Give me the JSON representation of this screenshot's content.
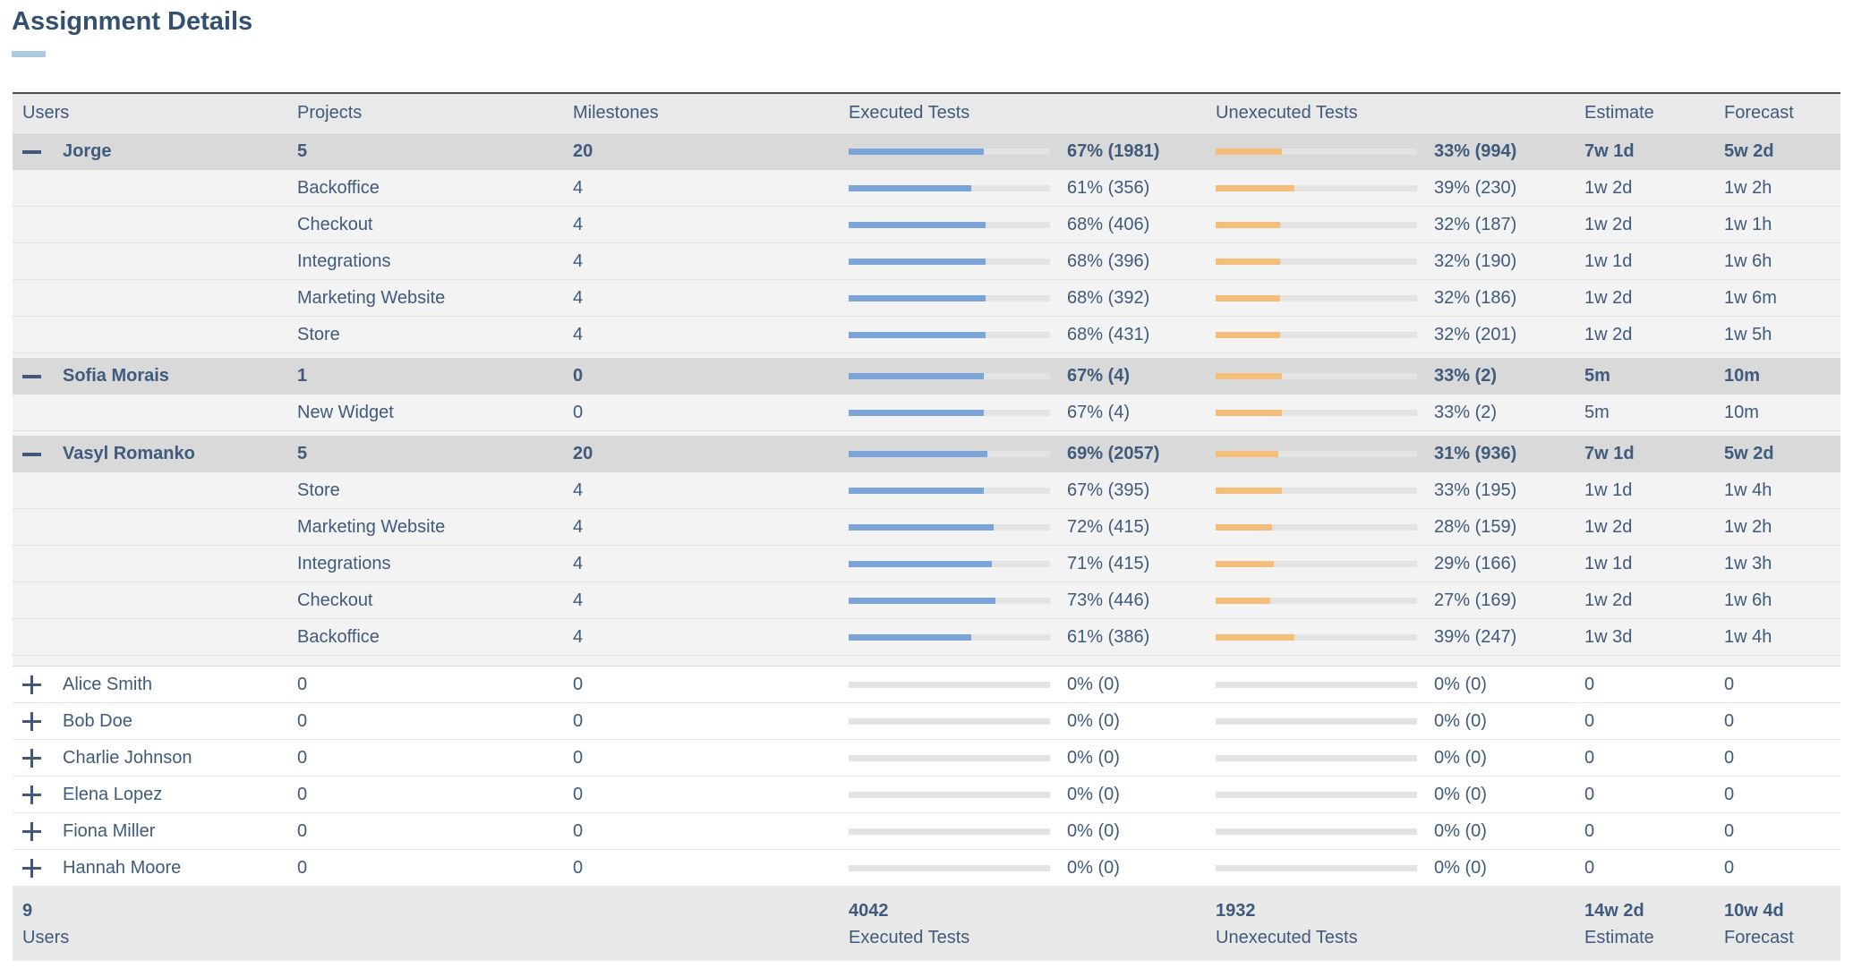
{
  "title": "Assignment Details",
  "columns": [
    "Users",
    "Projects",
    "Milestones",
    "Executed Tests",
    "Unexecuted Tests",
    "Estimate",
    "Forecast"
  ],
  "colors": {
    "text": "#3e5a7c",
    "title": "#33506f",
    "header_bg": "#e9e9e9",
    "group_bg": "#d9d9d9",
    "child_bg": "#f3f3f3",
    "bar_blue": "#7ba4d8",
    "bar_orange": "#f4bd7a",
    "bar_track": "#e3e3e3",
    "underline": "#aacbdf",
    "footer_bg": "#e8e8e8"
  },
  "icons": {
    "expanded": "minus",
    "collapsed": "plus"
  },
  "groups": [
    {
      "user": "Jorge",
      "projects": "5",
      "milestones": "20",
      "executed": {
        "pct": 67,
        "label": "67% (1981)"
      },
      "unexecuted": {
        "pct": 33,
        "label": "33% (994)"
      },
      "estimate": "7w 1d",
      "forecast": "5w 2d",
      "expanded": true,
      "children": [
        {
          "project": "Backoffice",
          "milestones": "4",
          "executed": {
            "pct": 61,
            "label": "61% (356)"
          },
          "unexecuted": {
            "pct": 39,
            "label": "39% (230)"
          },
          "estimate": "1w 2d",
          "forecast": "1w 2h"
        },
        {
          "project": "Checkout",
          "milestones": "4",
          "executed": {
            "pct": 68,
            "label": "68% (406)"
          },
          "unexecuted": {
            "pct": 32,
            "label": "32% (187)"
          },
          "estimate": "1w 2d",
          "forecast": "1w 1h"
        },
        {
          "project": "Integrations",
          "milestones": "4",
          "executed": {
            "pct": 68,
            "label": "68% (396)"
          },
          "unexecuted": {
            "pct": 32,
            "label": "32% (190)"
          },
          "estimate": "1w 1d",
          "forecast": "1w 6h"
        },
        {
          "project": "Marketing Website",
          "milestones": "4",
          "executed": {
            "pct": 68,
            "label": "68% (392)"
          },
          "unexecuted": {
            "pct": 32,
            "label": "32% (186)"
          },
          "estimate": "1w 2d",
          "forecast": "1w 6m"
        },
        {
          "project": "Store",
          "milestones": "4",
          "executed": {
            "pct": 68,
            "label": "68% (431)"
          },
          "unexecuted": {
            "pct": 32,
            "label": "32% (201)"
          },
          "estimate": "1w 2d",
          "forecast": "1w 5h"
        }
      ]
    },
    {
      "user": "Sofia Morais",
      "projects": "1",
      "milestones": "0",
      "executed": {
        "pct": 67,
        "label": "67% (4)"
      },
      "unexecuted": {
        "pct": 33,
        "label": "33% (2)"
      },
      "estimate": "5m",
      "forecast": "10m",
      "expanded": true,
      "children": [
        {
          "project": "New Widget",
          "milestones": "0",
          "executed": {
            "pct": 67,
            "label": "67% (4)"
          },
          "unexecuted": {
            "pct": 33,
            "label": "33% (2)"
          },
          "estimate": "5m",
          "forecast": "10m"
        }
      ]
    },
    {
      "user": "Vasyl Romanko",
      "projects": "5",
      "milestones": "20",
      "executed": {
        "pct": 69,
        "label": "69% (2057)"
      },
      "unexecuted": {
        "pct": 31,
        "label": "31% (936)"
      },
      "estimate": "7w 1d",
      "forecast": "5w 2d",
      "expanded": true,
      "children": [
        {
          "project": "Store",
          "milestones": "4",
          "executed": {
            "pct": 67,
            "label": "67% (395)"
          },
          "unexecuted": {
            "pct": 33,
            "label": "33% (195)"
          },
          "estimate": "1w 1d",
          "forecast": "1w 4h"
        },
        {
          "project": "Marketing Website",
          "milestones": "4",
          "executed": {
            "pct": 72,
            "label": "72% (415)"
          },
          "unexecuted": {
            "pct": 28,
            "label": "28% (159)"
          },
          "estimate": "1w 2d",
          "forecast": "1w 2h"
        },
        {
          "project": "Integrations",
          "milestones": "4",
          "executed": {
            "pct": 71,
            "label": "71% (415)"
          },
          "unexecuted": {
            "pct": 29,
            "label": "29% (166)"
          },
          "estimate": "1w 1d",
          "forecast": "1w 3h"
        },
        {
          "project": "Checkout",
          "milestones": "4",
          "executed": {
            "pct": 73,
            "label": "73% (446)"
          },
          "unexecuted": {
            "pct": 27,
            "label": "27% (169)"
          },
          "estimate": "1w 2d",
          "forecast": "1w 6h"
        },
        {
          "project": "Backoffice",
          "milestones": "4",
          "executed": {
            "pct": 61,
            "label": "61% (386)"
          },
          "unexecuted": {
            "pct": 39,
            "label": "39% (247)"
          },
          "estimate": "1w 3d",
          "forecast": "1w 4h"
        }
      ]
    }
  ],
  "collapsed_users": [
    {
      "user": "Alice Smith",
      "projects": "0",
      "milestones": "0",
      "executed": {
        "pct": 0,
        "label": "0% (0)"
      },
      "unexecuted": {
        "pct": 0,
        "label": "0% (0)"
      },
      "estimate": "0",
      "forecast": "0",
      "expanded": false
    },
    {
      "user": "Bob Doe",
      "projects": "0",
      "milestones": "0",
      "executed": {
        "pct": 0,
        "label": "0% (0)"
      },
      "unexecuted": {
        "pct": 0,
        "label": "0% (0)"
      },
      "estimate": "0",
      "forecast": "0",
      "expanded": false
    },
    {
      "user": "Charlie Johnson",
      "projects": "0",
      "milestones": "0",
      "executed": {
        "pct": 0,
        "label": "0% (0)"
      },
      "unexecuted": {
        "pct": 0,
        "label": "0% (0)"
      },
      "estimate": "0",
      "forecast": "0",
      "expanded": false
    },
    {
      "user": "Elena Lopez",
      "projects": "0",
      "milestones": "0",
      "executed": {
        "pct": 0,
        "label": "0% (0)"
      },
      "unexecuted": {
        "pct": 0,
        "label": "0% (0)"
      },
      "estimate": "0",
      "forecast": "0",
      "expanded": false
    },
    {
      "user": "Fiona Miller",
      "projects": "0",
      "milestones": "0",
      "executed": {
        "pct": 0,
        "label": "0% (0)"
      },
      "unexecuted": {
        "pct": 0,
        "label": "0% (0)"
      },
      "estimate": "0",
      "forecast": "0",
      "expanded": false
    },
    {
      "user": "Hannah Moore",
      "projects": "0",
      "milestones": "0",
      "executed": {
        "pct": 0,
        "label": "0% (0)"
      },
      "unexecuted": {
        "pct": 0,
        "label": "0% (0)"
      },
      "estimate": "0",
      "forecast": "0",
      "expanded": false
    }
  ],
  "footer": {
    "users": {
      "value": "9",
      "label": "Users"
    },
    "executed": {
      "value": "4042",
      "label": "Executed Tests"
    },
    "unexecuted": {
      "value": "1932",
      "label": "Unexecuted Tests"
    },
    "estimate": {
      "value": "14w 2d",
      "label": "Estimate"
    },
    "forecast": {
      "value": "10w 4d",
      "label": "Forecast"
    }
  }
}
